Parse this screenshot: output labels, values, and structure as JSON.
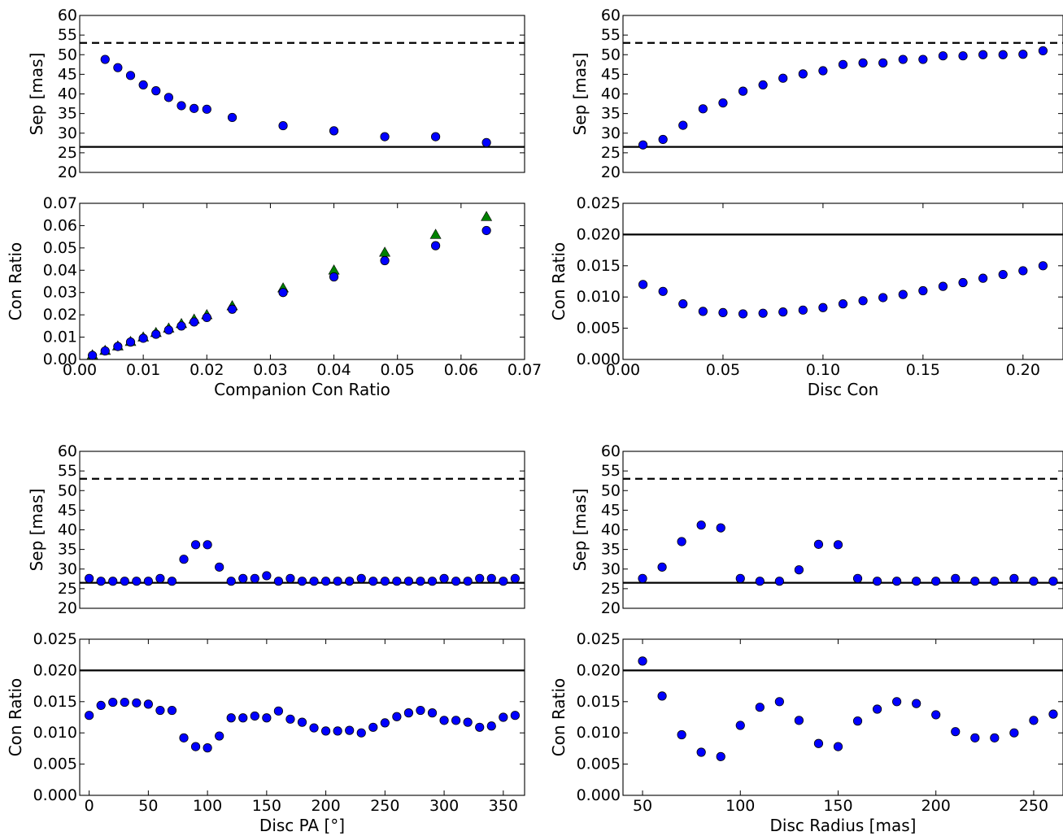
{
  "colors": {
    "blue": "#0000ff",
    "green": "#008000",
    "line": "#000000"
  },
  "chart_data": [
    {
      "type": "scatter",
      "id": "p1",
      "xlabel": "",
      "ylabel": "Sep [mas]",
      "xlim": [
        0,
        0.07
      ],
      "ylim": [
        20,
        60
      ],
      "xticks": [],
      "xtick_labels": [],
      "yticks": [
        20,
        25,
        30,
        35,
        40,
        45,
        50,
        55,
        60
      ],
      "ytick_labels": [
        "20",
        "25",
        "30",
        "35",
        "40",
        "45",
        "50",
        "55",
        "60"
      ],
      "hlines": [
        {
          "y": 53,
          "style": "dashed"
        },
        {
          "y": 26.5,
          "style": "solid"
        }
      ],
      "series": [
        {
          "marker": "circle",
          "color": "#0000ff",
          "x": [
            0.004,
            0.006,
            0.008,
            0.01,
            0.012,
            0.014,
            0.016,
            0.018,
            0.02,
            0.024,
            0.032,
            0.04,
            0.048,
            0.056,
            0.064
          ],
          "y": [
            48.8,
            46.7,
            44.7,
            42.3,
            40.8,
            39.1,
            37.0,
            36.3,
            36.1,
            34.0,
            31.9,
            30.6,
            29.1,
            29.1,
            27.6
          ]
        }
      ]
    },
    {
      "type": "scatter",
      "id": "p2",
      "xlabel": "Companion Con Ratio",
      "ylabel": "Con Ratio",
      "xlim": [
        0,
        0.07
      ],
      "ylim": [
        0,
        0.07
      ],
      "xticks": [
        0,
        0.01,
        0.02,
        0.03,
        0.04,
        0.05,
        0.06,
        0.07
      ],
      "xtick_labels": [
        "0.00",
        "0.01",
        "0.02",
        "0.03",
        "0.04",
        "0.05",
        "0.06",
        "0.07"
      ],
      "yticks": [
        0,
        0.01,
        0.02,
        0.03,
        0.04,
        0.05,
        0.06,
        0.07
      ],
      "ytick_labels": [
        "0.00",
        "0.01",
        "0.02",
        "0.03",
        "0.04",
        "0.05",
        "0.06",
        "0.07"
      ],
      "hlines": [],
      "series": [
        {
          "marker": "triangle",
          "color": "#008000",
          "x": [
            0.002,
            0.004,
            0.006,
            0.008,
            0.01,
            0.012,
            0.014,
            0.016,
            0.018,
            0.02,
            0.024,
            0.032,
            0.04,
            0.048,
            0.056,
            0.064
          ],
          "y": [
            0.002,
            0.004,
            0.006,
            0.008,
            0.01,
            0.012,
            0.014,
            0.016,
            0.018,
            0.02,
            0.024,
            0.032,
            0.04,
            0.048,
            0.056,
            0.064
          ]
        },
        {
          "marker": "circle",
          "color": "#0000ff",
          "x": [
            0.002,
            0.004,
            0.006,
            0.008,
            0.01,
            0.012,
            0.014,
            0.016,
            0.018,
            0.02,
            0.024,
            0.032,
            0.04,
            0.048,
            0.056,
            0.064
          ],
          "y": [
            0.0018,
            0.0038,
            0.0058,
            0.0078,
            0.0095,
            0.0113,
            0.0132,
            0.015,
            0.0168,
            0.0188,
            0.0225,
            0.03,
            0.037,
            0.0443,
            0.051,
            0.0578
          ]
        }
      ]
    },
    {
      "type": "scatter",
      "id": "p3",
      "xlabel": "",
      "ylabel": "Sep [mas]",
      "xlim": [
        0,
        0.22
      ],
      "ylim": [
        20,
        60
      ],
      "xticks": [],
      "xtick_labels": [],
      "yticks": [
        20,
        25,
        30,
        35,
        40,
        45,
        50,
        55,
        60
      ],
      "ytick_labels": [
        "20",
        "25",
        "30",
        "35",
        "40",
        "45",
        "50",
        "55",
        "60"
      ],
      "hlines": [
        {
          "y": 53,
          "style": "dashed"
        },
        {
          "y": 26.5,
          "style": "solid"
        }
      ],
      "series": [
        {
          "marker": "circle",
          "color": "#0000ff",
          "x": [
            0.01,
            0.02,
            0.03,
            0.04,
            0.05,
            0.06,
            0.07,
            0.08,
            0.09,
            0.1,
            0.11,
            0.12,
            0.13,
            0.14,
            0.15,
            0.16,
            0.17,
            0.18,
            0.19,
            0.2,
            0.21
          ],
          "y": [
            27.0,
            28.4,
            32.0,
            36.2,
            37.7,
            40.7,
            42.3,
            44.0,
            45.1,
            45.9,
            47.5,
            47.9,
            47.9,
            48.8,
            48.8,
            49.7,
            49.7,
            50.0,
            50.0,
            50.1,
            51.0
          ]
        }
      ]
    },
    {
      "type": "scatter",
      "id": "p4",
      "xlabel": "Disc Con",
      "ylabel": "Con Ratio",
      "xlim": [
        0,
        0.22
      ],
      "ylim": [
        0,
        0.025
      ],
      "xticks": [
        0,
        0.05,
        0.1,
        0.15,
        0.2
      ],
      "xtick_labels": [
        "0.00",
        "0.05",
        "0.10",
        "0.15",
        "0.20"
      ],
      "yticks": [
        0,
        0.005,
        0.01,
        0.015,
        0.02,
        0.025
      ],
      "ytick_labels": [
        "0.000",
        "0.005",
        "0.010",
        "0.015",
        "0.020",
        "0.025"
      ],
      "hlines": [
        {
          "y": 0.02,
          "style": "solid"
        }
      ],
      "series": [
        {
          "marker": "circle",
          "color": "#0000ff",
          "x": [
            0.01,
            0.02,
            0.03,
            0.04,
            0.05,
            0.06,
            0.07,
            0.08,
            0.09,
            0.1,
            0.11,
            0.12,
            0.13,
            0.14,
            0.15,
            0.16,
            0.17,
            0.18,
            0.19,
            0.2,
            0.21
          ],
          "y": [
            0.012,
            0.0109,
            0.0089,
            0.0077,
            0.0075,
            0.0073,
            0.0074,
            0.0076,
            0.0079,
            0.0083,
            0.0089,
            0.0094,
            0.0099,
            0.0104,
            0.011,
            0.0117,
            0.0123,
            0.013,
            0.0136,
            0.0142,
            0.015
          ]
        }
      ]
    },
    {
      "type": "scatter",
      "id": "p5",
      "xlabel": "",
      "ylabel": "Sep [mas]",
      "xlim": [
        -8,
        368
      ],
      "ylim": [
        20,
        60
      ],
      "xticks": [],
      "xtick_labels": [],
      "yticks": [
        20,
        25,
        30,
        35,
        40,
        45,
        50,
        55,
        60
      ],
      "ytick_labels": [
        "20",
        "25",
        "30",
        "35",
        "40",
        "45",
        "50",
        "55",
        "60"
      ],
      "hlines": [
        {
          "y": 53,
          "style": "dashed"
        },
        {
          "y": 26.5,
          "style": "solid"
        }
      ],
      "series": [
        {
          "marker": "circle",
          "color": "#0000ff",
          "x": [
            0,
            10,
            20,
            30,
            40,
            50,
            60,
            70,
            80,
            90,
            100,
            110,
            120,
            130,
            140,
            150,
            160,
            170,
            180,
            190,
            200,
            210,
            220,
            230,
            240,
            250,
            260,
            270,
            280,
            290,
            300,
            310,
            320,
            330,
            340,
            350,
            360
          ],
          "y": [
            27.6,
            26.9,
            26.9,
            26.9,
            26.9,
            26.9,
            27.6,
            26.9,
            32.5,
            36.2,
            36.2,
            30.5,
            26.9,
            27.6,
            27.6,
            28.3,
            26.9,
            27.6,
            26.9,
            26.9,
            26.9,
            26.9,
            26.9,
            27.6,
            26.9,
            26.9,
            26.9,
            26.9,
            26.9,
            26.9,
            27.6,
            26.9,
            26.9,
            27.6,
            27.6,
            26.9,
            27.6
          ]
        }
      ]
    },
    {
      "type": "scatter",
      "id": "p6",
      "xlabel": "Disc PA [°]",
      "ylabel": "Con Ratio",
      "xlim": [
        -8,
        368
      ],
      "ylim": [
        0,
        0.025
      ],
      "xticks": [
        0,
        50,
        100,
        150,
        200,
        250,
        300,
        350
      ],
      "xtick_labels": [
        "0",
        "50",
        "100",
        "150",
        "200",
        "250",
        "300",
        "350"
      ],
      "yticks": [
        0,
        0.005,
        0.01,
        0.015,
        0.02,
        0.025
      ],
      "ytick_labels": [
        "0.000",
        "0.005",
        "0.010",
        "0.015",
        "0.020",
        "0.025"
      ],
      "hlines": [
        {
          "y": 0.02,
          "style": "solid"
        }
      ],
      "series": [
        {
          "marker": "circle",
          "color": "#0000ff",
          "x": [
            0,
            10,
            20,
            30,
            40,
            50,
            60,
            70,
            80,
            90,
            100,
            110,
            120,
            130,
            140,
            150,
            160,
            170,
            180,
            190,
            200,
            210,
            220,
            230,
            240,
            250,
            260,
            270,
            280,
            290,
            300,
            310,
            320,
            330,
            340,
            350,
            360
          ],
          "y": [
            0.0128,
            0.0144,
            0.0149,
            0.0149,
            0.0148,
            0.0146,
            0.0136,
            0.0136,
            0.0092,
            0.0078,
            0.0076,
            0.0095,
            0.0124,
            0.0124,
            0.0127,
            0.0124,
            0.0135,
            0.0122,
            0.0117,
            0.0108,
            0.0103,
            0.0103,
            0.0104,
            0.01,
            0.0109,
            0.0116,
            0.0126,
            0.0132,
            0.0136,
            0.0132,
            0.012,
            0.012,
            0.0117,
            0.0109,
            0.0111,
            0.0125,
            0.0128
          ]
        }
      ]
    },
    {
      "type": "scatter",
      "id": "p7",
      "xlabel": "",
      "ylabel": "Sep [mas]",
      "xlim": [
        40,
        265
      ],
      "ylim": [
        20,
        60
      ],
      "xticks": [],
      "xtick_labels": [],
      "yticks": [
        20,
        25,
        30,
        35,
        40,
        45,
        50,
        55,
        60
      ],
      "ytick_labels": [
        "20",
        "25",
        "30",
        "35",
        "40",
        "45",
        "50",
        "55",
        "60"
      ],
      "hlines": [
        {
          "y": 53,
          "style": "dashed"
        },
        {
          "y": 26.5,
          "style": "solid"
        }
      ],
      "series": [
        {
          "marker": "circle",
          "color": "#0000ff",
          "x": [
            50,
            60,
            70,
            80,
            90,
            100,
            110,
            120,
            130,
            140,
            150,
            160,
            170,
            180,
            190,
            200,
            210,
            220,
            230,
            240,
            250,
            260
          ],
          "y": [
            27.6,
            30.5,
            37.0,
            41.2,
            40.5,
            27.6,
            26.9,
            26.9,
            29.8,
            36.3,
            36.2,
            27.6,
            26.9,
            26.9,
            26.9,
            26.9,
            27.6,
            26.9,
            26.9,
            27.6,
            26.9,
            26.9
          ]
        }
      ]
    },
    {
      "type": "scatter",
      "id": "p8",
      "xlabel": "Disc Radius [mas]",
      "ylabel": "Con Ratio",
      "xlim": [
        40,
        265
      ],
      "ylim": [
        0,
        0.025
      ],
      "xticks": [
        50,
        100,
        150,
        200,
        250
      ],
      "xtick_labels": [
        "50",
        "100",
        "150",
        "200",
        "250"
      ],
      "yticks": [
        0,
        0.005,
        0.01,
        0.015,
        0.02,
        0.025
      ],
      "ytick_labels": [
        "0.000",
        "0.005",
        "0.010",
        "0.015",
        "0.020",
        "0.025"
      ],
      "hlines": [
        {
          "y": 0.02,
          "style": "solid"
        }
      ],
      "series": [
        {
          "marker": "circle",
          "color": "#0000ff",
          "x": [
            50,
            60,
            70,
            80,
            90,
            100,
            110,
            120,
            130,
            140,
            150,
            160,
            170,
            180,
            190,
            200,
            210,
            220,
            230,
            240,
            250,
            260
          ],
          "y": [
            0.0215,
            0.0159,
            0.0097,
            0.0069,
            0.0062,
            0.0112,
            0.0141,
            0.015,
            0.012,
            0.0083,
            0.0078,
            0.0119,
            0.0138,
            0.015,
            0.0147,
            0.0129,
            0.0102,
            0.0092,
            0.0092,
            0.01,
            0.012,
            0.013
          ]
        }
      ]
    }
  ]
}
